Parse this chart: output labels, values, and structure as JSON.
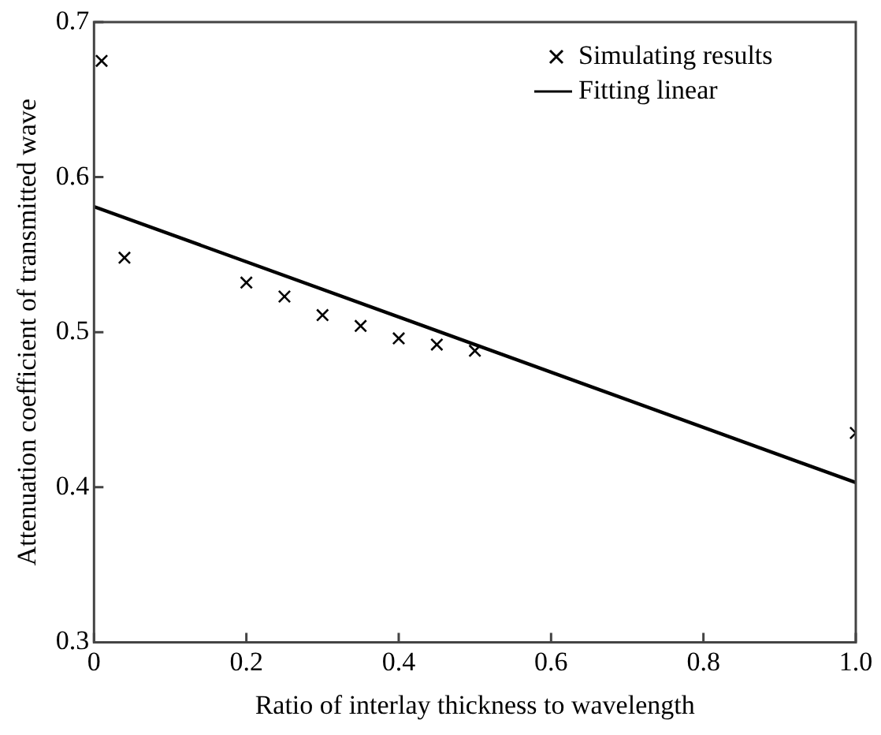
{
  "chart_data": {
    "type": "scatter",
    "xlabel": "Ratio of interlay thickness to wavelength",
    "ylabel": "Attenuation coefficient of transmitted wave",
    "series": [
      {
        "name": "Simulating results",
        "color": "#000000",
        "marker": "cross",
        "x": [
          0.01,
          0.04,
          0.2,
          0.25,
          0.3,
          0.35,
          0.4,
          0.45,
          0.5,
          1.0
        ],
        "values": [
          0.675,
          0.548,
          0.532,
          0.523,
          0.511,
          0.504,
          0.496,
          0.492,
          0.488,
          0.435
        ]
      },
      {
        "name": "Fitting linear",
        "type": "line",
        "color": "#000000",
        "marker": "none",
        "line_style": "solid",
        "x": [
          0,
          1.0
        ],
        "values": [
          0.581,
          0.403
        ]
      }
    ],
    "xlim": [
      0,
      1.0
    ],
    "ylim": [
      0.3,
      0.7
    ],
    "xticks": [
      0,
      {
        "value": 0.2,
        "label": "0.2"
      },
      {
        "value": 0.4,
        "label": "0.4"
      },
      {
        "value": 0.6,
        "label": "0.6"
      },
      {
        "value": 0.8,
        "label": "0.8"
      },
      {
        "value": 1.0,
        "label": "1.0"
      }
    ],
    "yticks": [
      {
        "value": 0.3,
        "label": "0.3"
      },
      {
        "value": 0.4,
        "label": "0.4"
      },
      {
        "value": 0.5,
        "label": "0.5"
      },
      {
        "value": 0.6,
        "label": "0.6"
      },
      {
        "value": 0.7,
        "label": "0.7"
      }
    ],
    "grid": false,
    "legend": "top right"
  }
}
